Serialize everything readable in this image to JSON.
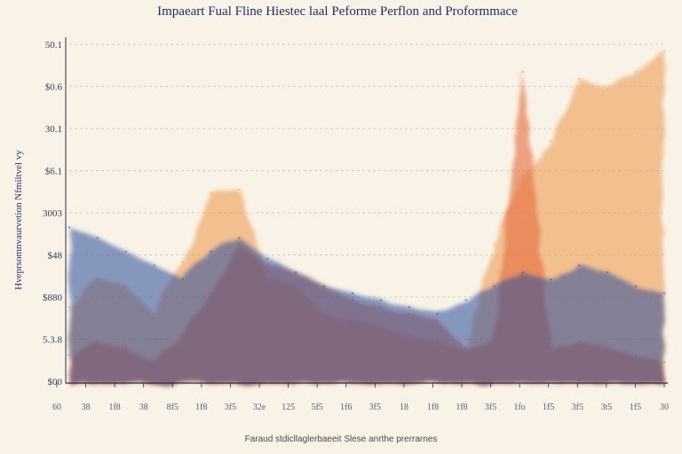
{
  "chart_data": {
    "type": "area",
    "title": "Impaeart Fual Fline Hiestec laal Peforme Perflon and Proformmace",
    "ylabel": "Hveprsomnvaurvetion Nfmiltvel vy",
    "xlabel": "",
    "footnote": "Faraud stdicllaglerbaeeit Slese anrthe prerrarnes",
    "y_ticks": [
      "50.1",
      "$0.6",
      "30.1",
      "$6.1",
      "3003",
      "$48",
      "$880",
      "5.3.8",
      "$00"
    ],
    "x_tick_labels": [
      "60",
      "38",
      "1f8",
      "38",
      "8f5",
      "1f8",
      "3f5",
      "32e",
      "125",
      "5f5",
      "1f6",
      "3f5",
      "18",
      "1f8",
      "1f8",
      "3f5",
      "1fo",
      "1f5",
      "3f5",
      "3t5",
      "1f5",
      "30"
    ],
    "grid": true,
    "legend": "none",
    "x": [
      0,
      1,
      2,
      3,
      4,
      5,
      6,
      7,
      8,
      9,
      10,
      11,
      12,
      13,
      14,
      15,
      16,
      17,
      18,
      19,
      20,
      21
    ],
    "ylim": [
      0,
      100
    ],
    "series": [
      {
        "color": "#ef9c55",
        "values": [
          22,
          30,
          28,
          20,
          35,
          55,
          56,
          30,
          28,
          20,
          18,
          16,
          14,
          12,
          10,
          40,
          60,
          70,
          88,
          85,
          90,
          96
        ]
      },
      {
        "color": "#e56b3e",
        "values": [
          8,
          12,
          10,
          6,
          14,
          26,
          40,
          34,
          32,
          28,
          24,
          22,
          20,
          18,
          10,
          12,
          90,
          10,
          12,
          10,
          8,
          6
        ]
      },
      {
        "color": "#2c4a9a",
        "values": [
          45,
          42,
          38,
          34,
          30,
          38,
          42,
          36,
          32,
          28,
          26,
          24,
          22,
          20,
          24,
          28,
          32,
          30,
          34,
          32,
          28,
          26
        ]
      }
    ]
  }
}
